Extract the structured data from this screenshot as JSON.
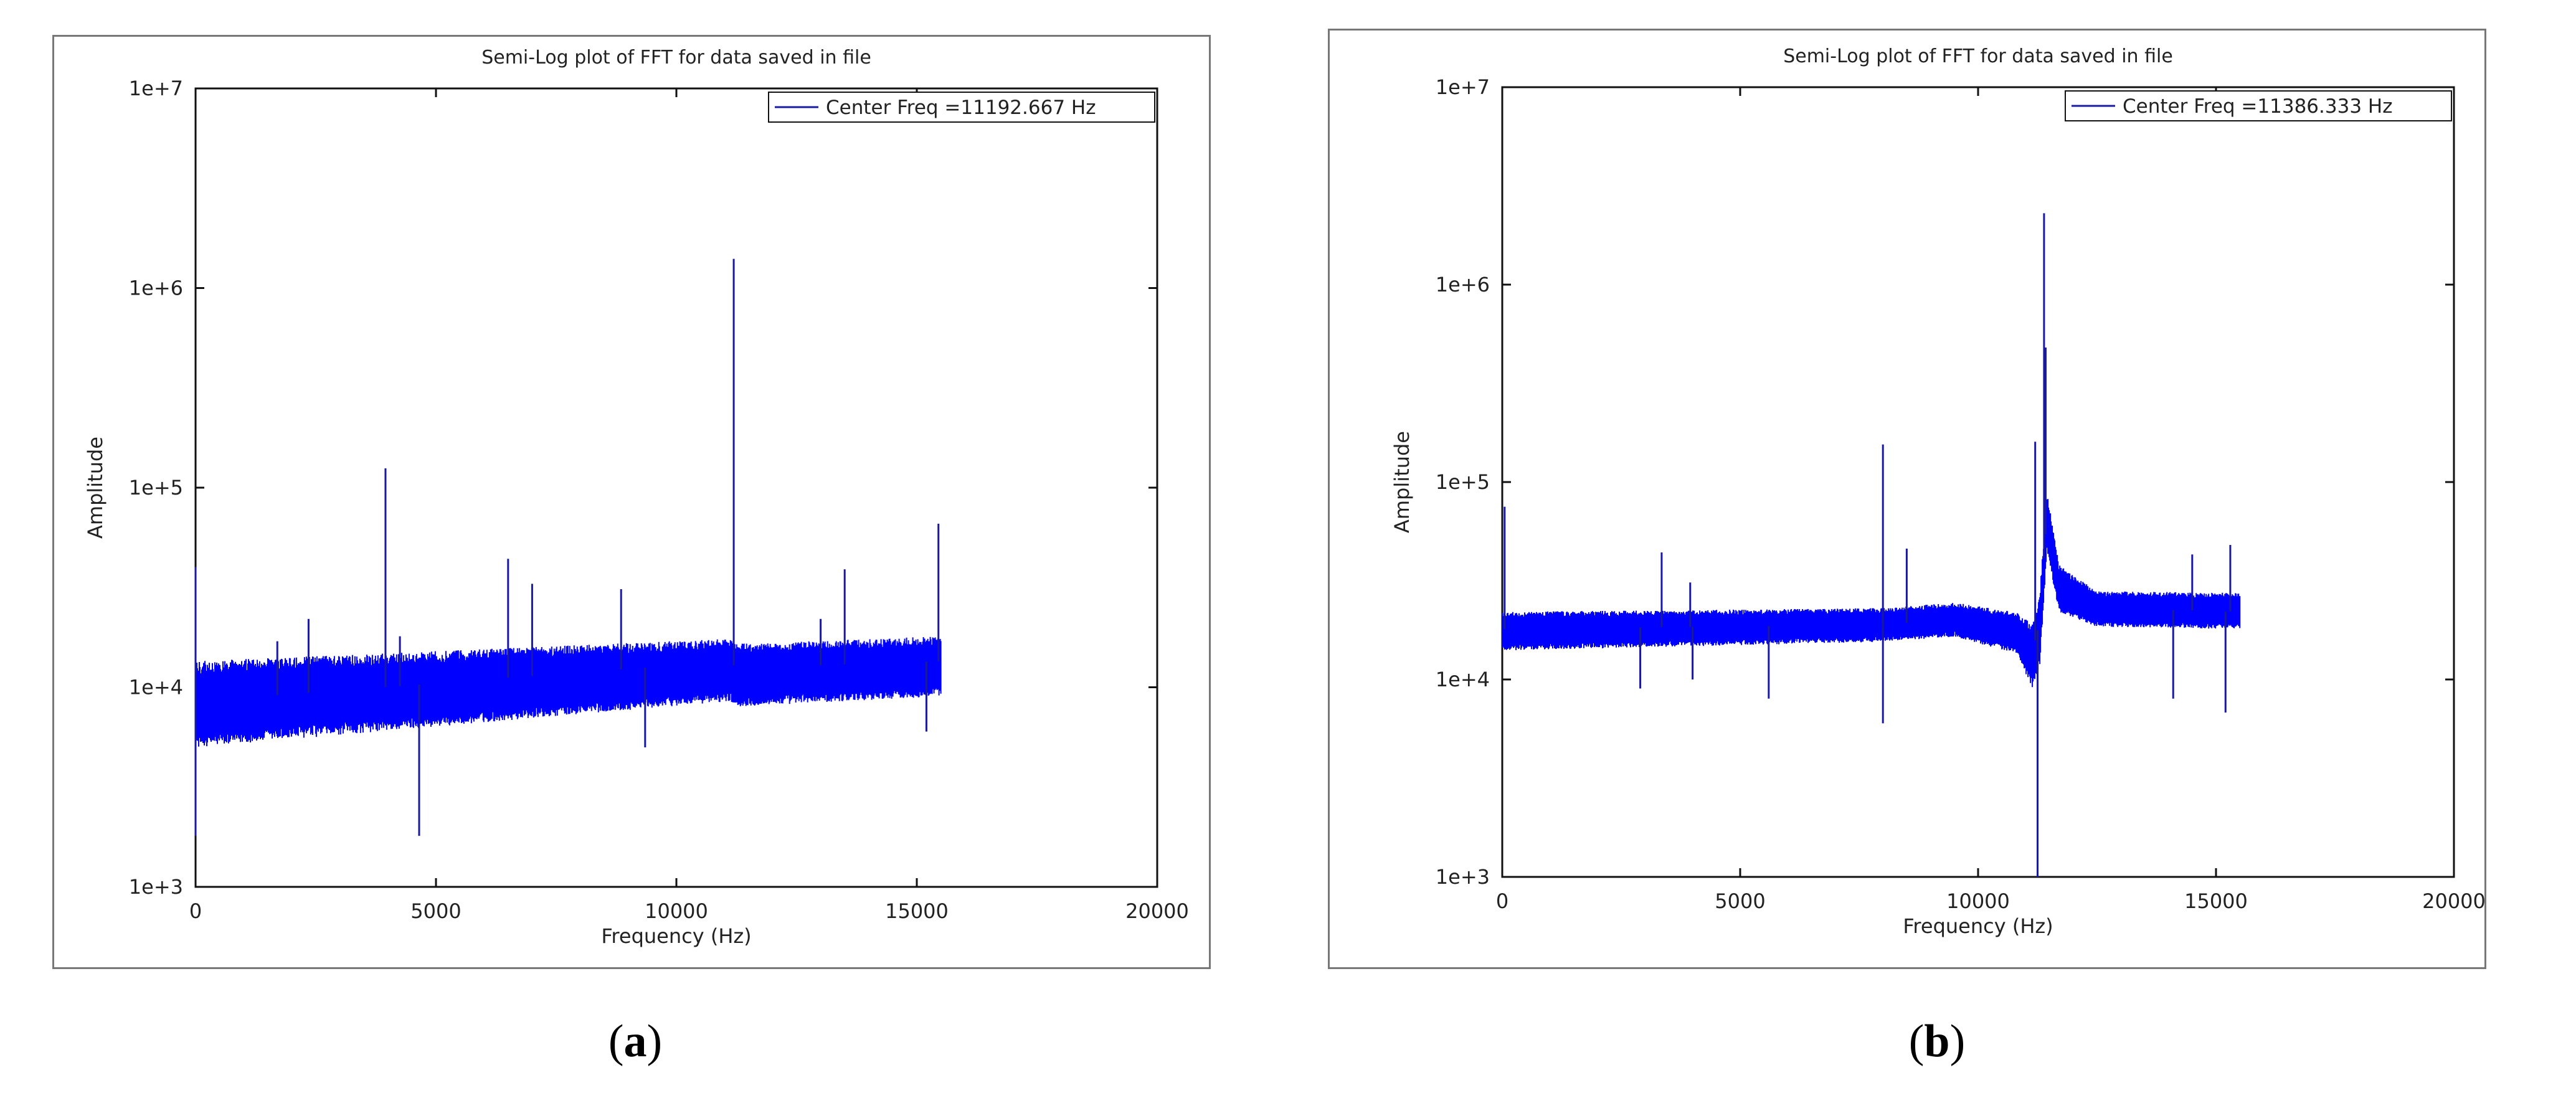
{
  "figure": {
    "caption_a_open": "(",
    "caption_a_letter": "a",
    "caption_a_close": ")",
    "caption_b_open": "(",
    "caption_b_letter": "b",
    "caption_b_close": ")"
  },
  "chart_data": [
    {
      "type": "line",
      "title": "Semi-Log plot of FFT for data saved in file",
      "xlabel": "Frequency (Hz)",
      "ylabel": "Amplitude",
      "xlim": [
        0,
        20000
      ],
      "ylim": [
        1000,
        10000000
      ],
      "yscale": "log",
      "x_ticks": [
        0,
        5000,
        10000,
        15000,
        20000
      ],
      "x_tick_labels": [
        "0",
        "5000",
        "10000",
        "15000",
        "20000"
      ],
      "y_ticks": [
        1000,
        10000,
        100000,
        1000000,
        10000000
      ],
      "y_tick_labels": [
        "1e+3",
        "1e+4",
        "1e+5",
        "1e+6",
        "1e+7"
      ],
      "grid": false,
      "legend_position": "top-right",
      "line_color": "#0000ff",
      "series": [
        {
          "name": "Center Freq =11192.667 Hz",
          "baseline": {
            "x": [
              0,
              11100,
              11250,
              15500
            ],
            "y": [
              8500,
              13500,
              12500,
              13500
            ]
          },
          "noise_band_low": {
            "x": [
              0,
              11100,
              11250,
              15500
            ],
            "y": [
              5000,
              8500,
              8000,
              9000
            ]
          },
          "noise_band_high": {
            "x": [
              0,
              11100,
              11250,
              15500
            ],
            "y": [
              13500,
              17500,
              16500,
              18000
            ]
          },
          "spikes": [
            {
              "x": 0,
              "y": 40000
            },
            {
              "x": 0,
              "y": 1800
            },
            {
              "x": 1700,
              "y": 17000
            },
            {
              "x": 2350,
              "y": 22000
            },
            {
              "x": 3950,
              "y": 125000
            },
            {
              "x": 4250,
              "y": 18000
            },
            {
              "x": 4650,
              "y": 1800
            },
            {
              "x": 6500,
              "y": 44000
            },
            {
              "x": 7000,
              "y": 33000
            },
            {
              "x": 8850,
              "y": 31000
            },
            {
              "x": 9350,
              "y": 5000
            },
            {
              "x": 11192.667,
              "y": 1400000
            },
            {
              "x": 13000,
              "y": 22000
            },
            {
              "x": 13500,
              "y": 39000
            },
            {
              "x": 15200,
              "y": 6000
            },
            {
              "x": 15450,
              "y": 66000
            }
          ]
        }
      ]
    },
    {
      "type": "line",
      "title": "Semi-Log plot of FFT for data saved in file",
      "xlabel": "Frequency (Hz)",
      "ylabel": "Amplitude",
      "xlim": [
        0,
        20000
      ],
      "ylim": [
        1000,
        10000000
      ],
      "yscale": "log",
      "x_ticks": [
        0,
        5000,
        10000,
        15000,
        20000
      ],
      "x_tick_labels": [
        "0",
        "5000",
        "10000",
        "15000",
        "20000"
      ],
      "y_ticks": [
        1000,
        10000,
        100000,
        1000000,
        10000000
      ],
      "y_tick_labels": [
        "1e+3",
        "1e+4",
        "1e+5",
        "1e+6",
        "1e+7"
      ],
      "grid": false,
      "legend_position": "top-right",
      "line_color": "#0000ff",
      "series": [
        {
          "name": "Center Freq =11386.333 Hz",
          "baseline": {
            "x": [
              0,
              8000,
              9500,
              10800,
              11150,
              11300,
              11450,
              11700,
              12500,
              15500
            ],
            "y": [
              18000,
              19000,
              20000,
              18000,
              14000,
              20000,
              70000,
              30000,
              23000,
              22000
            ]
          },
          "noise_band_low": {
            "x": [
              0,
              8000,
              9500,
              10800,
              11150,
              11300,
              11450,
              11700,
              12500,
              15500
            ],
            "y": [
              14000,
              15500,
              16500,
              13500,
              9000,
              12000,
              45000,
              22000,
              18500,
              18000
            ]
          },
          "noise_band_high": {
            "x": [
              0,
              8000,
              9500,
              10800,
              11150,
              11300,
              11450,
              11700,
              12500,
              15500
            ],
            "y": [
              22000,
              23000,
              24500,
              22000,
              19000,
              28000,
              90000,
              38000,
              28000,
              27500
            ]
          },
          "spikes": [
            {
              "x": 50,
              "y": 75000
            },
            {
              "x": 2900,
              "y": 9000
            },
            {
              "x": 3350,
              "y": 44000
            },
            {
              "x": 3950,
              "y": 31000
            },
            {
              "x": 4000,
              "y": 10000
            },
            {
              "x": 5600,
              "y": 8000
            },
            {
              "x": 8000,
              "y": 155000
            },
            {
              "x": 8000,
              "y": 6000
            },
            {
              "x": 8500,
              "y": 46000
            },
            {
              "x": 11200,
              "y": 160000
            },
            {
              "x": 11250,
              "y": 1000
            },
            {
              "x": 11386.333,
              "y": 2300000
            },
            {
              "x": 11420,
              "y": 480000
            },
            {
              "x": 14100,
              "y": 8000
            },
            {
              "x": 14500,
              "y": 43000
            },
            {
              "x": 15200,
              "y": 6800
            },
            {
              "x": 15300,
              "y": 48000
            }
          ]
        }
      ]
    }
  ]
}
